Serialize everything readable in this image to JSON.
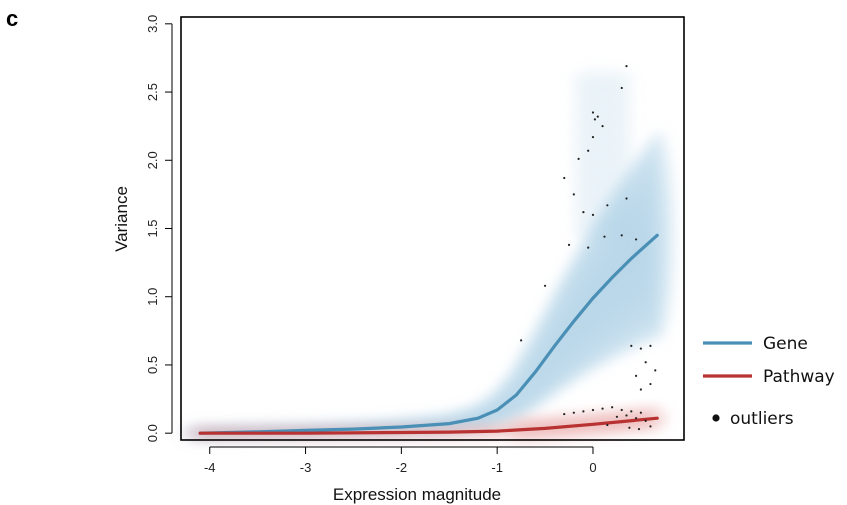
{
  "panel_label": "c",
  "chart_data": {
    "type": "line",
    "title": "",
    "xlabel": "Expression magnitude",
    "ylabel": "Variance",
    "xlim": [
      -4.3,
      0.95
    ],
    "ylim": [
      -0.05,
      3.05
    ],
    "x_ticks": [
      -4,
      -3,
      -2,
      -1,
      0
    ],
    "y_ticks": [
      0.0,
      0.5,
      1.0,
      1.5,
      2.0,
      2.5,
      3.0
    ],
    "x_tick_labels": [
      "-4",
      "-3",
      "-2",
      "-1",
      "0"
    ],
    "y_tick_labels": [
      "0.0",
      "0.5",
      "1.0",
      "1.5",
      "2.0",
      "2.5",
      "3.0"
    ],
    "grid": false,
    "legend_position": "right",
    "series": [
      {
        "name": "Gene",
        "color": "#4a8fb5",
        "x": [
          -4.1,
          -3.5,
          -3.0,
          -2.5,
          -2.0,
          -1.5,
          -1.2,
          -1.0,
          -0.8,
          -0.6,
          -0.4,
          -0.2,
          0.0,
          0.2,
          0.4,
          0.67
        ],
        "y": [
          0.0,
          0.01,
          0.02,
          0.03,
          0.045,
          0.07,
          0.11,
          0.17,
          0.28,
          0.45,
          0.64,
          0.82,
          0.99,
          1.14,
          1.28,
          1.45
        ]
      },
      {
        "name": "Pathway",
        "color": "#b83232",
        "x": [
          -4.1,
          -3.0,
          -2.0,
          -1.5,
          -1.0,
          -0.5,
          0.0,
          0.3,
          0.67
        ],
        "y": [
          0.0,
          0.0,
          0.005,
          0.008,
          0.015,
          0.035,
          0.065,
          0.085,
          0.11
        ]
      }
    ],
    "outliers": {
      "name": "outliers",
      "color": "#222222",
      "x": [
        0.35,
        0.3,
        0.0,
        0.05,
        0.02,
        0.1,
        0.0,
        -0.05,
        -0.15,
        -0.3,
        -0.2,
        0.35,
        0.15,
        -0.1,
        0.0,
        0.3,
        0.45,
        -0.25,
        -0.05,
        0.12,
        -0.5,
        -0.75,
        0.4,
        0.5,
        0.6,
        0.55,
        0.65,
        0.45,
        0.6,
        0.5,
        -0.3,
        -0.2,
        -0.1,
        0.0,
        0.1,
        0.2,
        0.3,
        0.4,
        0.5,
        0.25,
        0.35,
        0.45,
        0.55,
        0.6,
        0.15,
        0.38,
        0.48
      ],
      "y": [
        2.69,
        2.53,
        2.35,
        2.32,
        2.3,
        2.25,
        2.17,
        2.07,
        2.01,
        1.87,
        1.75,
        1.72,
        1.67,
        1.62,
        1.6,
        1.45,
        1.42,
        1.38,
        1.36,
        1.44,
        1.08,
        0.68,
        0.64,
        0.62,
        0.64,
        0.52,
        0.46,
        0.42,
        0.36,
        0.32,
        0.14,
        0.15,
        0.16,
        0.17,
        0.18,
        0.19,
        0.17,
        0.16,
        0.15,
        0.12,
        0.13,
        0.11,
        0.09,
        0.05,
        0.06,
        0.04,
        0.03
      ]
    },
    "legend": [
      "Gene",
      "Pathway",
      "outliers"
    ]
  }
}
